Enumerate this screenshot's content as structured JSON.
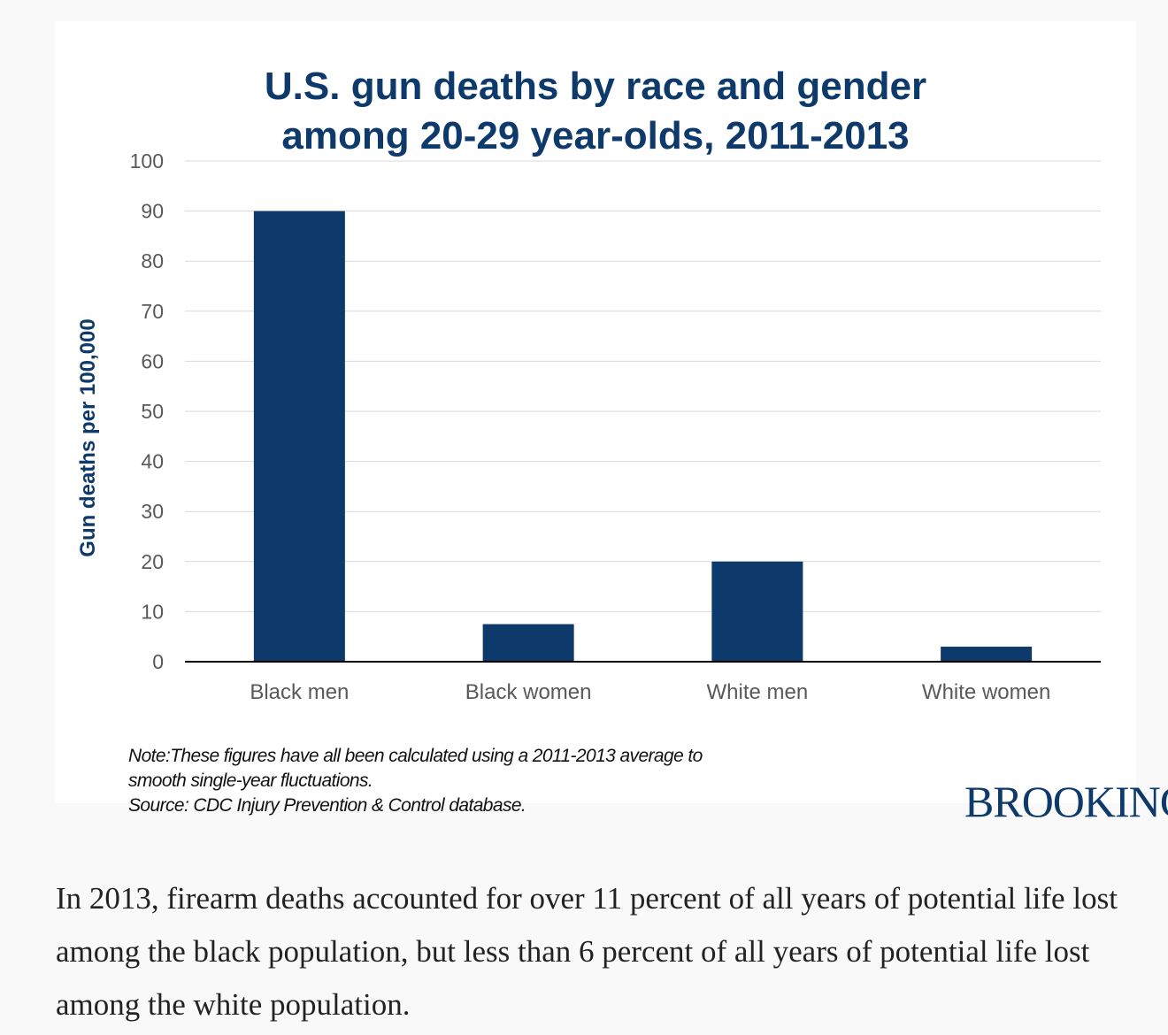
{
  "chart_data": {
    "type": "bar",
    "title_lines": [
      "U.S. gun deaths by race and gender",
      "among 20-29 year-olds, 2011-2013"
    ],
    "xlabel": "",
    "ylabel": "Gun deaths per 100,000",
    "categories": [
      "Black men",
      "Black women",
      "White men",
      "White women"
    ],
    "values": [
      90,
      7.5,
      20,
      3
    ],
    "ylim": [
      0,
      100
    ],
    "yticks": [
      0,
      10,
      20,
      30,
      40,
      50,
      60,
      70,
      80,
      90,
      100
    ],
    "grid": true,
    "legend": "none",
    "colors": {
      "bar": "#0d3a6b",
      "title": "#0d3a6b",
      "grid": "#d9d9d9",
      "tick_label": "#595959"
    }
  },
  "notes": [
    "Note:These figures have all been calculated using a 2011-2013 average to",
    "smooth single-year fluctuations.",
    "Source: CDC Injury Prevention & Control database."
  ],
  "logo_text": "BROOKINGS",
  "caption": "In 2013, firearm deaths accounted for over 11 percent of all years of potential life lost among the black population, but less than 6 percent of all years of potential life lost among the white population."
}
